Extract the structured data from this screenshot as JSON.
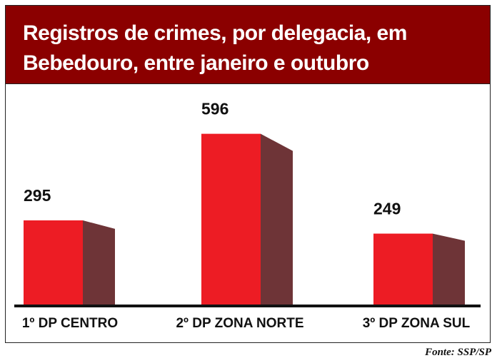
{
  "chart_data": {
    "type": "bar",
    "title": "Registros de crimes, por delegacia, em Bebedouro, entre janeiro e outubro",
    "categories": [
      "1º DP CENTRO",
      "2º DP ZONA NORTE",
      "3º DP ZONA SUL"
    ],
    "values": [
      295,
      596,
      249
    ],
    "data_labels": [
      "295",
      "596",
      "249"
    ],
    "xlabel": "",
    "ylabel": "",
    "grid": false,
    "style": "3d",
    "colors": {
      "front": "#ed1c24",
      "side": "#6e3437",
      "header": "#8b0000"
    }
  },
  "source": "Fonte: SSP/SP"
}
